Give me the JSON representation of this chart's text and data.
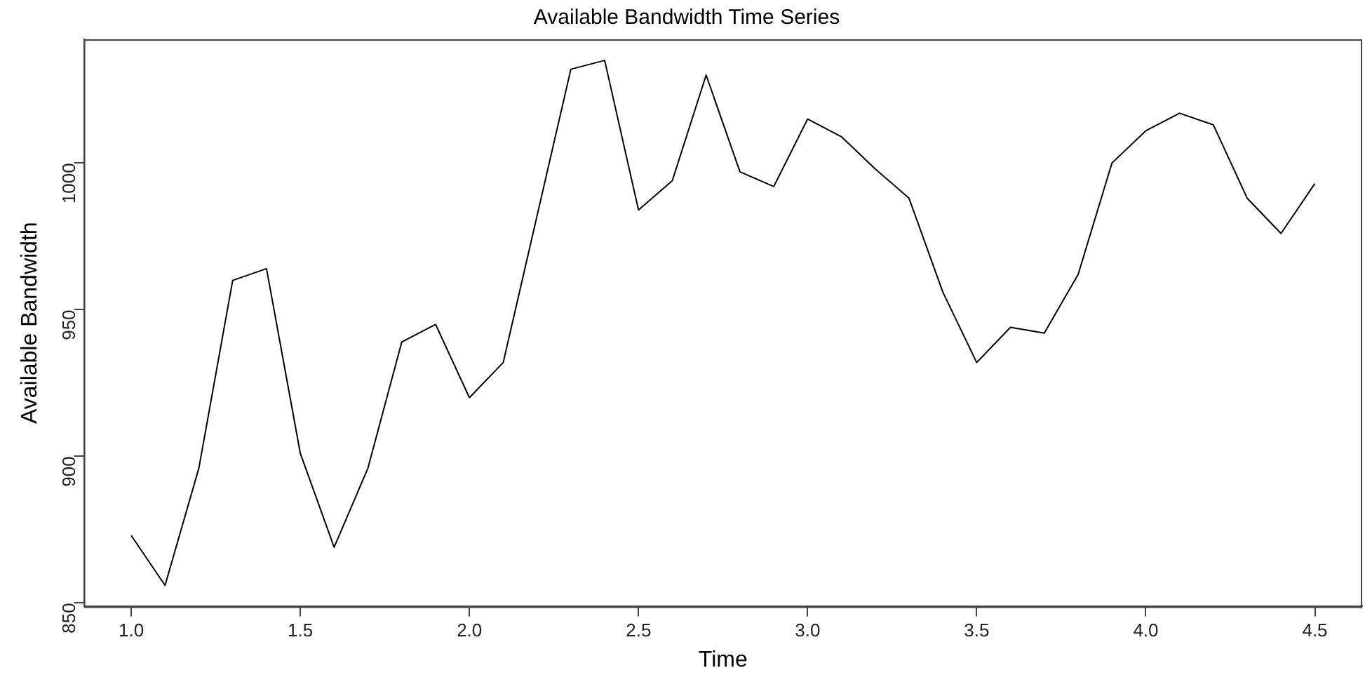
{
  "chart_data": {
    "type": "line",
    "title": "Available Bandwidth Time Series",
    "xlabel": "Time",
    "ylabel": "Available Bandwidth",
    "x": [
      1.0,
      1.1,
      1.2,
      1.3,
      1.4,
      1.5,
      1.6,
      1.7,
      1.8,
      1.9,
      2.0,
      2.1,
      2.2,
      2.3,
      2.4,
      2.5,
      2.6,
      2.7,
      2.8,
      2.9,
      3.0,
      3.1,
      3.2,
      3.3,
      3.4,
      3.5,
      3.6,
      3.7,
      3.8,
      3.9,
      4.0,
      4.1,
      4.2,
      4.3,
      4.4,
      4.5
    ],
    "series": [
      {
        "color": "#000000",
        "values": [
          873,
          856,
          896,
          960,
          964,
          901,
          869,
          896,
          939,
          945,
          920,
          932,
          982,
          1032,
          1035,
          984,
          994,
          1030,
          997,
          992,
          1015,
          1009,
          998,
          988,
          956,
          932,
          944,
          942,
          962,
          1000,
          1011,
          1017,
          1013,
          988,
          976,
          993
        ]
      }
    ],
    "xlim": [
      0.86,
      4.64
    ],
    "ylim": [
      848.8,
      1042.2
    ],
    "xticks": [
      {
        "value": 1,
        "label": "1.0"
      },
      1.5,
      {
        "value": 2,
        "label": "2.0"
      },
      2.5,
      {
        "value": 3,
        "label": "3.0"
      },
      3.5,
      {
        "value": 4,
        "label": "4.0"
      },
      4.5
    ],
    "yticks": [
      850,
      900,
      950,
      1000
    ],
    "grid": false,
    "legend": false,
    "marker": "none",
    "line_style": "solid"
  }
}
